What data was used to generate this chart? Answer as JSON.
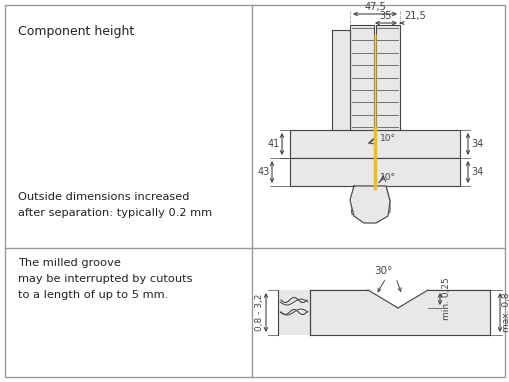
{
  "background_color": "#ffffff",
  "border_color": "#999999",
  "text_color": "#222222",
  "dim_color": "#444444",
  "yellow_color": "#e8c020",
  "gray_fill": "#cccccc",
  "light_gray": "#e8e8e8",
  "texts": {
    "top_left_line1": "Component height",
    "outside_dim_line1": "Outside dimensions increased",
    "outside_dim_line2": "after separation: typically 0.2 mm",
    "bottom_left_line1": "The milled groove",
    "bottom_left_line2": "may be interrupted by cutouts",
    "bottom_left_line3": "to a length of up to 5 mm.",
    "dim_475": "47,5",
    "dim_35": "35",
    "dim_215": "21,5",
    "dim_41": "41",
    "dim_43": "43",
    "dim_34a": "34",
    "dim_34b": "34",
    "dim_10a": "10°",
    "dim_10b": "10°",
    "dim_30": "30°",
    "dim_min025": "min. 0,25",
    "dim_max08": "max. 0,8",
    "dim_083_32": "0,8 - 3,2"
  }
}
